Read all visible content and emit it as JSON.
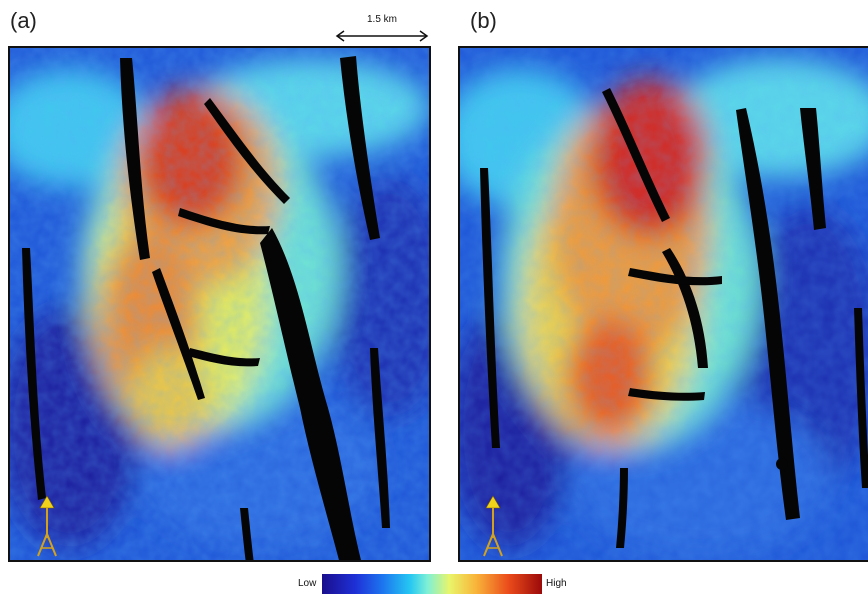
{
  "panels": [
    {
      "label": "(a)"
    },
    {
      "label": "(b)"
    }
  ],
  "scale_bar": {
    "label": "1.5 km"
  },
  "north_arrow": {
    "label": "N"
  },
  "legend": {
    "low_label": "Low",
    "high_label": "High"
  },
  "colors": {
    "low": "#1a0f8c",
    "mid_low": "#1e6fe6",
    "mid": "#3fd8f0",
    "mid_high": "#f3e24a",
    "high": "#c80f0f",
    "fault": "#050505"
  }
}
